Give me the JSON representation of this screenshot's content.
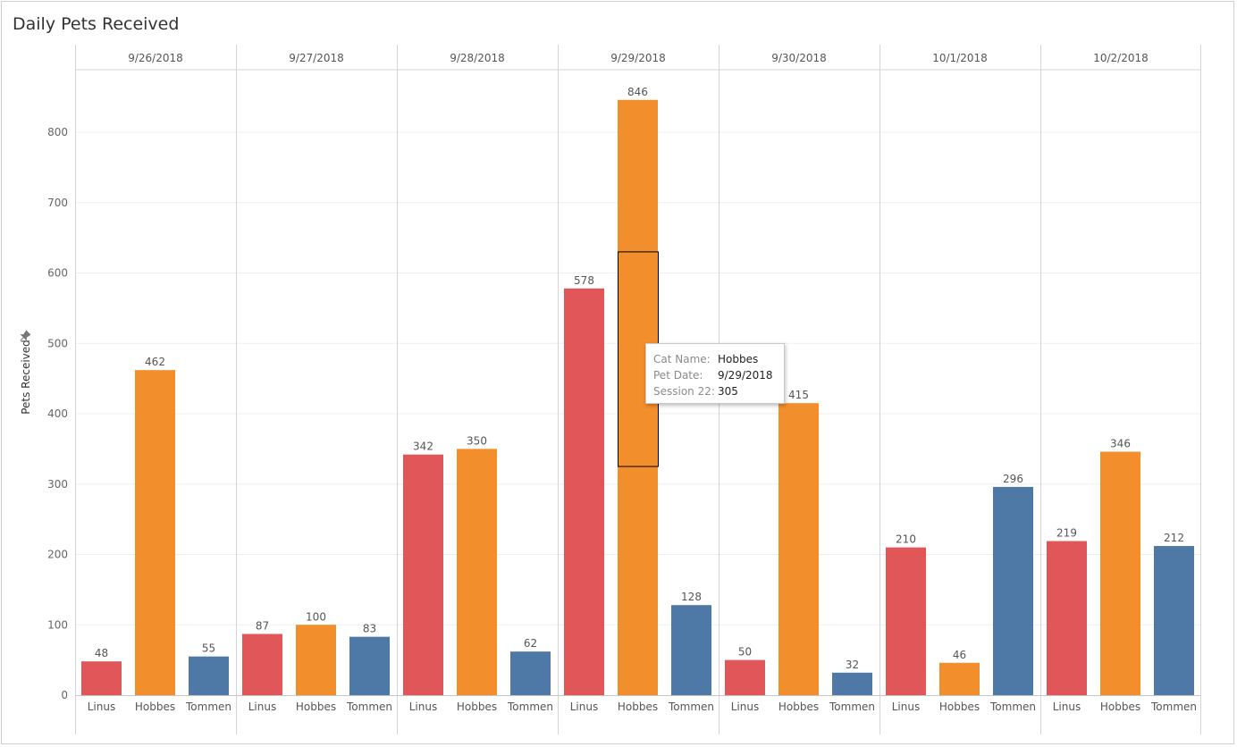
{
  "chart_data": {
    "type": "bar",
    "title": "Daily Pets Received",
    "ylabel": "Pets Received",
    "xlabel": "",
    "ylim": [
      0,
      880
    ],
    "yticks": [
      0,
      100,
      200,
      300,
      400,
      500,
      600,
      700,
      800
    ],
    "dates": [
      "9/26/2018",
      "9/27/2018",
      "9/28/2018",
      "9/29/2018",
      "9/30/2018",
      "10/1/2018",
      "10/2/2018"
    ],
    "categories": [
      "Linus",
      "Hobbes",
      "Tommen"
    ],
    "colors": {
      "Linus": "#e15759",
      "Hobbes": "#f28e2b",
      "Tommen": "#4e79a7"
    },
    "series": [
      {
        "name": "Linus",
        "values": [
          48,
          87,
          342,
          578,
          50,
          210,
          219
        ]
      },
      {
        "name": "Hobbes",
        "values": [
          462,
          100,
          350,
          846,
          415,
          46,
          346
        ]
      },
      {
        "name": "Tommen",
        "values": [
          55,
          83,
          62,
          128,
          32,
          296,
          212
        ]
      }
    ],
    "highlight": {
      "date_index": 3,
      "cat": "Hobbes",
      "segment_range": [
        325,
        630
      ]
    },
    "tooltip": {
      "rows": [
        {
          "key": "Cat Name:",
          "value": "Hobbes"
        },
        {
          "key": "Pet Date:",
          "value": "9/29/2018"
        },
        {
          "key": "Session 22:",
          "value": "305"
        }
      ]
    }
  }
}
